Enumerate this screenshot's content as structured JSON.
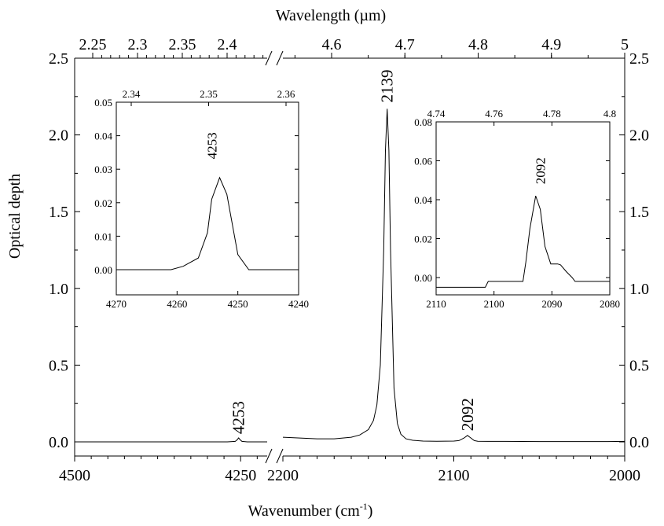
{
  "chart_data": [
    {
      "id": "main",
      "type": "line",
      "xlabel_bottom": "Wavenumber (cm",
      "xlabel_bottom_sup": "-1",
      "xlabel_bottom_close": ")",
      "xlabel_top": "Wavelength (µm)",
      "ylabel": "Optical depth",
      "ylim": [
        -0.1,
        2.5
      ],
      "y_ticks": [
        "0.0",
        "0.5",
        "1.0",
        "1.5",
        "2.0",
        "2.5"
      ],
      "y_tick_values": [
        0,
        0.5,
        1.0,
        1.5,
        2.0,
        2.5
      ],
      "x_broken_axis": true,
      "x_left_segment": {
        "range": [
          4500,
          4210
        ],
        "ticks": [
          "4500",
          "4250"
        ],
        "tick_values": [
          4500,
          4250
        ]
      },
      "x_right_segment": {
        "range": [
          2200,
          2000
        ],
        "ticks": [
          "2200",
          "2100",
          "2000"
        ],
        "tick_values": [
          2200,
          2100,
          2000
        ]
      },
      "top_left_ticks": [
        "2.25",
        "2.3",
        "2.35",
        "2.4"
      ],
      "top_left_tick_values": [
        2.25,
        2.3,
        2.35,
        2.4
      ],
      "top_right_ticks": [
        "4.6",
        "4.7",
        "4.8",
        "4.9",
        "5"
      ],
      "top_right_tick_values": [
        4.6,
        4.7,
        4.8,
        4.9,
        5.0
      ],
      "series_left": {
        "x": [
          4500,
          4400,
          4300,
          4270,
          4258,
          4255,
          4253,
          4251,
          4248,
          4240,
          4220,
          4210
        ],
        "y": [
          0.0,
          0.0,
          0.0,
          0.0,
          0.003,
          0.015,
          0.026,
          0.015,
          0.003,
          0.0,
          0.0,
          0.0
        ]
      },
      "series_right": {
        "x": [
          2200,
          2190,
          2180,
          2170,
          2160,
          2155,
          2150,
          2147,
          2145,
          2143,
          2141,
          2140,
          2139,
          2138,
          2137,
          2135,
          2133,
          2131,
          2128,
          2124,
          2118,
          2110,
          2100,
          2097,
          2094,
          2092,
          2090,
          2088,
          2086,
          2080,
          2070,
          2050,
          2030,
          2010,
          2000
        ],
        "y": [
          0.03,
          0.025,
          0.02,
          0.02,
          0.03,
          0.045,
          0.08,
          0.14,
          0.24,
          0.5,
          1.25,
          1.9,
          2.17,
          1.9,
          1.25,
          0.35,
          0.12,
          0.05,
          0.02,
          0.01,
          0.005,
          0.004,
          0.005,
          0.008,
          0.025,
          0.042,
          0.025,
          0.008,
          0.004,
          0.003,
          0.003,
          0.002,
          0.002,
          0.002,
          0.003
        ]
      },
      "annotations": [
        {
          "text": "4253",
          "x": 4253,
          "y": 0.03
        },
        {
          "text": "2139",
          "x": 2139,
          "y": 2.19
        },
        {
          "text": "2092",
          "x": 2092,
          "y": 0.05
        }
      ]
    },
    {
      "id": "inset1",
      "type": "line",
      "xlim": [
        4270,
        4240
      ],
      "ylim": [
        -0.005,
        0.05
      ],
      "x_ticks": [
        "4270",
        "4260",
        "4250",
        "4240"
      ],
      "x_tick_values": [
        4270,
        4260,
        4250,
        4240
      ],
      "y_ticks": [
        "0.00",
        "0.01",
        "0.02",
        "0.03",
        "0.04",
        "0.05"
      ],
      "y_tick_values": [
        0,
        0.01,
        0.02,
        0.03,
        0.04,
        0.05
      ],
      "top_ticks": [
        "2.34",
        "2.35",
        "2.36"
      ],
      "top_tick_values": [
        2.34,
        2.35,
        2.36
      ],
      "x": [
        4270,
        4264,
        4261,
        4259,
        4256.5,
        4255,
        4254.3,
        4253,
        4251.8,
        4250,
        4248.2,
        4245,
        4240
      ],
      "y": [
        0,
        0,
        0,
        0.001,
        0.0035,
        0.011,
        0.021,
        0.0275,
        0.0225,
        0.0045,
        0,
        0,
        0
      ],
      "annotations": [
        {
          "text": "4253",
          "x": 4254.3,
          "y": 0.033
        }
      ]
    },
    {
      "id": "inset2",
      "type": "line",
      "xlim": [
        2110,
        2080
      ],
      "ylim": [
        -0.01,
        0.08
      ],
      "x_ticks": [
        "2110",
        "2100",
        "2090",
        "2080"
      ],
      "x_tick_values": [
        2110,
        2100,
        2090,
        2080
      ],
      "y_ticks": [
        "0.00",
        "0.02",
        "0.04",
        "0.06",
        "0.08"
      ],
      "y_tick_values": [
        0,
        0.02,
        0.04,
        0.06,
        0.08
      ],
      "top_ticks": [
        "4.74",
        "4.76",
        "4.78",
        "4.8"
      ],
      "top_tick_values": [
        4.74,
        4.76,
        4.78,
        4.8
      ],
      "x": [
        2110,
        2106,
        2101.5,
        2101,
        2099,
        2095,
        2094.5,
        2093.8,
        2092.8,
        2092,
        2091.2,
        2090.2,
        2089,
        2088.5,
        2087.5,
        2086.5,
        2086,
        2084,
        2080
      ],
      "y": [
        -0.005,
        -0.005,
        -0.005,
        -0.002,
        -0.002,
        -0.002,
        0.008,
        0.025,
        0.042,
        0.035,
        0.016,
        0.007,
        0.007,
        0.0065,
        0.003,
        0.0,
        -0.002,
        -0.002,
        -0.002
      ],
      "annotations": [
        {
          "text": "2092",
          "x": 2092,
          "y": 0.048
        }
      ]
    }
  ]
}
